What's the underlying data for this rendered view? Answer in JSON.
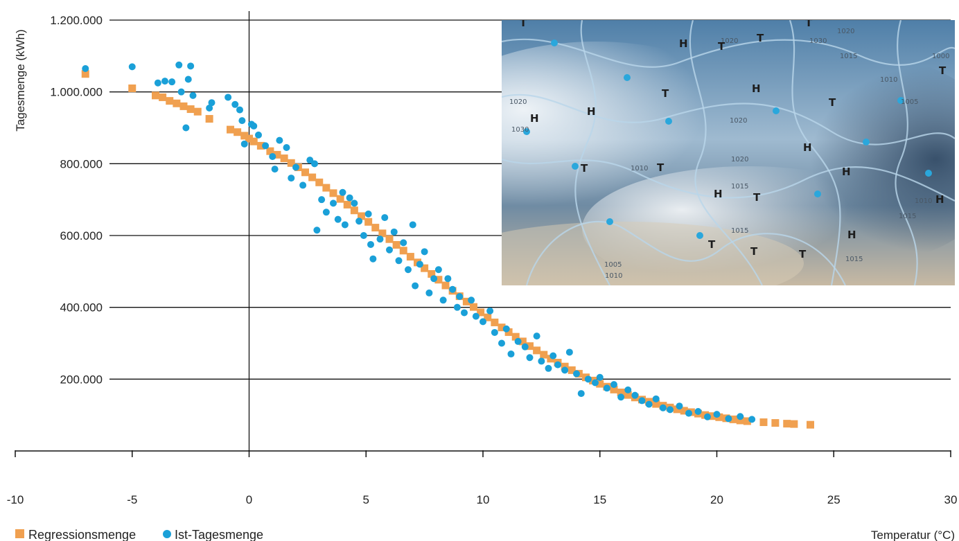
{
  "chart_data": {
    "type": "scatter",
    "title": "",
    "xlabel": "Temperatur (°C)",
    "ylabel": "Tagesmenge (kWh)",
    "xlim": [
      -10,
      30
    ],
    "ylim": [
      0,
      1200000
    ],
    "x_ticks": [
      -10,
      -5,
      0,
      5,
      10,
      15,
      20,
      25,
      30
    ],
    "x_tick_labels": [
      "-10",
      "-5",
      "0",
      "5",
      "10",
      "15",
      "20",
      "25",
      "30"
    ],
    "y_ticks": [
      200000,
      400000,
      600000,
      800000,
      1000000,
      1200000
    ],
    "y_tick_labels": [
      "200.000",
      "400.000",
      "600.000",
      "800.000",
      "1.000.000",
      "1.200.000"
    ],
    "grid": "horizontal",
    "legend_position": "bottom-left",
    "series": [
      {
        "name": "Regressionsmenge",
        "marker": "square",
        "color": "#f0a050",
        "points": [
          [
            -7,
            1050000
          ],
          [
            -5,
            1010000
          ],
          [
            -4,
            990000
          ],
          [
            -3.7,
            985000
          ],
          [
            -3.4,
            975000
          ],
          [
            -3.1,
            968000
          ],
          [
            -2.8,
            960000
          ],
          [
            -2.5,
            952000
          ],
          [
            -2.2,
            945000
          ],
          [
            -1.7,
            925000
          ],
          [
            -0.8,
            895000
          ],
          [
            -0.5,
            888000
          ],
          [
            -0.2,
            878000
          ],
          [
            0,
            870000
          ],
          [
            0.2,
            862000
          ],
          [
            0.5,
            850000
          ],
          [
            0.9,
            835000
          ],
          [
            1.2,
            825000
          ],
          [
            1.5,
            815000
          ],
          [
            1.8,
            802000
          ],
          [
            2.1,
            790000
          ],
          [
            2.4,
            776000
          ],
          [
            2.7,
            762000
          ],
          [
            3,
            748000
          ],
          [
            3.3,
            733000
          ],
          [
            3.6,
            718000
          ],
          [
            3.9,
            702000
          ],
          [
            4.2,
            686000
          ],
          [
            4.5,
            670000
          ],
          [
            4.8,
            654000
          ],
          [
            5.1,
            638000
          ],
          [
            5.4,
            622000
          ],
          [
            5.7,
            606000
          ],
          [
            6,
            590000
          ],
          [
            6.3,
            574000
          ],
          [
            6.6,
            558000
          ],
          [
            6.9,
            541000
          ],
          [
            7.2,
            525000
          ],
          [
            7.5,
            509000
          ],
          [
            7.8,
            493000
          ],
          [
            8.1,
            477000
          ],
          [
            8.4,
            461000
          ],
          [
            8.7,
            446000
          ],
          [
            9,
            431000
          ],
          [
            9.3,
            416000
          ],
          [
            9.6,
            401000
          ],
          [
            9.9,
            386000
          ],
          [
            10.2,
            372000
          ],
          [
            10.5,
            358000
          ],
          [
            10.8,
            344000
          ],
          [
            11.1,
            331000
          ],
          [
            11.4,
            318000
          ],
          [
            11.7,
            305000
          ],
          [
            12,
            292000
          ],
          [
            12.3,
            280000
          ],
          [
            12.6,
            268000
          ],
          [
            12.9,
            257000
          ],
          [
            13.2,
            246000
          ],
          [
            13.5,
            235000
          ],
          [
            13.8,
            225000
          ],
          [
            14.1,
            215000
          ],
          [
            14.4,
            205000
          ],
          [
            14.7,
            196000
          ],
          [
            15,
            187000
          ],
          [
            15.3,
            179000
          ],
          [
            15.6,
            171000
          ],
          [
            15.9,
            163000
          ],
          [
            16.2,
            156000
          ],
          [
            16.5,
            149000
          ],
          [
            16.8,
            143000
          ],
          [
            17.1,
            137000
          ],
          [
            17.4,
            131000
          ],
          [
            17.7,
            126000
          ],
          [
            18,
            121000
          ],
          [
            18.3,
            116000
          ],
          [
            18.6,
            112000
          ],
          [
            18.9,
            108000
          ],
          [
            19.2,
            104000
          ],
          [
            19.5,
            100000
          ],
          [
            19.8,
            97000
          ],
          [
            20.1,
            94000
          ],
          [
            20.4,
            91000
          ],
          [
            20.7,
            88000
          ],
          [
            21,
            85000
          ],
          [
            21.3,
            83000
          ],
          [
            22,
            80000
          ],
          [
            22.5,
            78000
          ],
          [
            23,
            76000
          ],
          [
            23.3,
            75000
          ],
          [
            24,
            73000
          ]
        ]
      },
      {
        "name": "Ist-Tagesmenge",
        "marker": "circle",
        "color": "#1aa0d8",
        "points": [
          [
            -7,
            1065000
          ],
          [
            -5,
            1070000
          ],
          [
            -3.9,
            1025000
          ],
          [
            -3.6,
            1030000
          ],
          [
            -3.3,
            1028000
          ],
          [
            -3,
            1075000
          ],
          [
            -2.9,
            1000000
          ],
          [
            -2.6,
            1035000
          ],
          [
            -2.5,
            1072000
          ],
          [
            -2.4,
            990000
          ],
          [
            -2.7,
            900000
          ],
          [
            -1.7,
            955000
          ],
          [
            -1.6,
            970000
          ],
          [
            -0.9,
            985000
          ],
          [
            -0.6,
            965000
          ],
          [
            -0.4,
            950000
          ],
          [
            -0.3,
            920000
          ],
          [
            -0.2,
            855000
          ],
          [
            0.1,
            910000
          ],
          [
            0.2,
            905000
          ],
          [
            0.4,
            880000
          ],
          [
            0.7,
            850000
          ],
          [
            1,
            820000
          ],
          [
            1.1,
            785000
          ],
          [
            1.3,
            865000
          ],
          [
            1.6,
            845000
          ],
          [
            1.8,
            760000
          ],
          [
            2,
            790000
          ],
          [
            2.3,
            740000
          ],
          [
            2.6,
            810000
          ],
          [
            2.8,
            800000
          ],
          [
            2.9,
            615000
          ],
          [
            3.1,
            700000
          ],
          [
            3.3,
            665000
          ],
          [
            3.6,
            690000
          ],
          [
            3.8,
            645000
          ],
          [
            4,
            720000
          ],
          [
            4.1,
            630000
          ],
          [
            4.3,
            705000
          ],
          [
            4.5,
            690000
          ],
          [
            4.7,
            640000
          ],
          [
            4.9,
            600000
          ],
          [
            5.1,
            660000
          ],
          [
            5.2,
            575000
          ],
          [
            5.3,
            535000
          ],
          [
            5.6,
            590000
          ],
          [
            5.8,
            650000
          ],
          [
            6,
            560000
          ],
          [
            6.2,
            610000
          ],
          [
            6.4,
            530000
          ],
          [
            6.6,
            580000
          ],
          [
            6.8,
            505000
          ],
          [
            7,
            630000
          ],
          [
            7.1,
            460000
          ],
          [
            7.3,
            520000
          ],
          [
            7.5,
            555000
          ],
          [
            7.7,
            440000
          ],
          [
            7.9,
            480000
          ],
          [
            8.1,
            505000
          ],
          [
            8.3,
            420000
          ],
          [
            8.5,
            480000
          ],
          [
            8.7,
            450000
          ],
          [
            8.9,
            400000
          ],
          [
            9,
            430000
          ],
          [
            9.2,
            385000
          ],
          [
            9.5,
            420000
          ],
          [
            9.7,
            375000
          ],
          [
            10,
            360000
          ],
          [
            10.3,
            390000
          ],
          [
            10.5,
            330000
          ],
          [
            10.8,
            300000
          ],
          [
            11,
            340000
          ],
          [
            11.2,
            270000
          ],
          [
            11.5,
            305000
          ],
          [
            11.8,
            290000
          ],
          [
            12,
            260000
          ],
          [
            12.3,
            320000
          ],
          [
            12.5,
            250000
          ],
          [
            12.8,
            230000
          ],
          [
            13,
            265000
          ],
          [
            13.2,
            240000
          ],
          [
            13.5,
            225000
          ],
          [
            13.7,
            275000
          ],
          [
            14,
            215000
          ],
          [
            14.2,
            160000
          ],
          [
            14.5,
            200000
          ],
          [
            14.8,
            190000
          ],
          [
            15,
            205000
          ],
          [
            15.3,
            175000
          ],
          [
            15.6,
            185000
          ],
          [
            15.9,
            150000
          ],
          [
            16.2,
            170000
          ],
          [
            16.5,
            155000
          ],
          [
            16.8,
            140000
          ],
          [
            17.1,
            130000
          ],
          [
            17.4,
            145000
          ],
          [
            17.7,
            120000
          ],
          [
            18,
            115000
          ],
          [
            18.4,
            125000
          ],
          [
            18.8,
            105000
          ],
          [
            19.2,
            110000
          ],
          [
            19.6,
            95000
          ],
          [
            20,
            102000
          ],
          [
            20.5,
            90000
          ],
          [
            21,
            96000
          ],
          [
            21.5,
            88000
          ]
        ]
      }
    ]
  },
  "legend": {
    "items": [
      {
        "label": "Regressionsmenge",
        "marker": "square",
        "color": "#f0a050"
      },
      {
        "label": "Ist-Tagesmenge",
        "marker": "circle",
        "color": "#1aa0d8"
      }
    ]
  },
  "inset_map": {
    "description_icon": "weather-map-image",
    "pressure_labels": [
      "1020",
      "1030",
      "1015",
      "1010",
      "1005",
      "1000",
      "1020",
      "1030",
      "1020",
      "1020",
      "1015",
      "1010",
      "1015",
      "1020",
      "1005",
      "1010",
      "1015",
      "1010",
      "1015"
    ],
    "high_markers": [
      "H",
      "H",
      "H",
      "H",
      "H",
      "H",
      "H",
      "H",
      "H"
    ],
    "low_markers": [
      "T",
      "T",
      "T",
      "T",
      "T",
      "T",
      "T",
      "T",
      "T",
      "T",
      "T",
      "T",
      "T"
    ]
  }
}
